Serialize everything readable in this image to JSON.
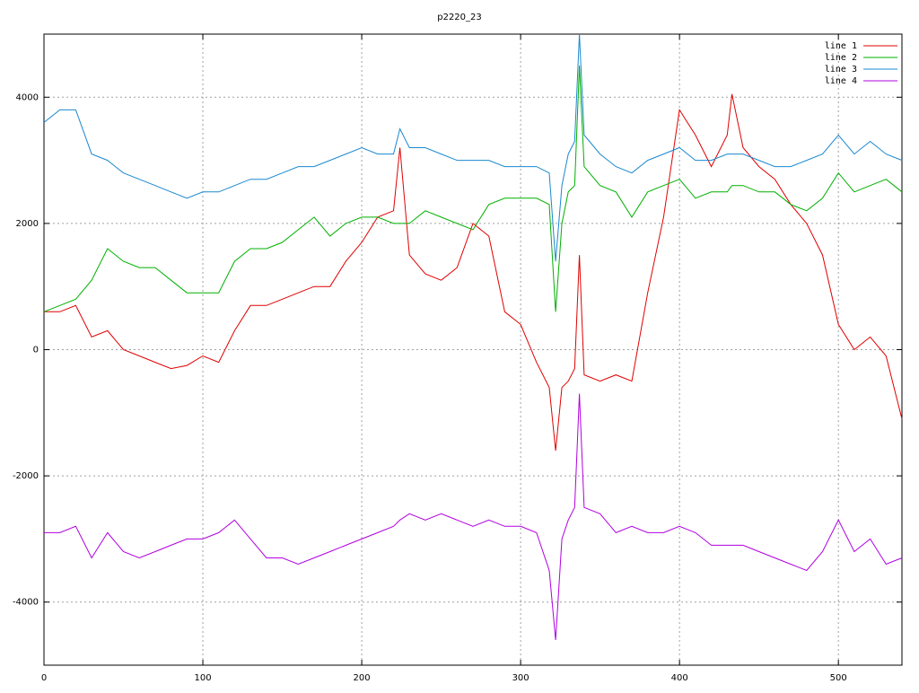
{
  "chart_data": {
    "type": "line",
    "title": "p2220_23",
    "x": [
      0,
      10,
      20,
      30,
      40,
      50,
      60,
      70,
      80,
      90,
      100,
      110,
      120,
      130,
      140,
      150,
      160,
      170,
      180,
      190,
      200,
      210,
      220,
      224,
      230,
      240,
      250,
      260,
      270,
      280,
      290,
      300,
      310,
      318,
      322,
      326,
      330,
      334,
      337,
      340,
      350,
      360,
      370,
      380,
      390,
      400,
      410,
      420,
      430,
      433,
      440,
      450,
      460,
      470,
      480,
      490,
      500,
      510,
      520,
      530,
      540
    ],
    "series": [
      {
        "name": "line 1",
        "color": "#e00000",
        "values": [
          600,
          600,
          700,
          200,
          300,
          0,
          -100,
          -200,
          -300,
          -250,
          -100,
          -200,
          300,
          700,
          700,
          800,
          900,
          1000,
          1000,
          1400,
          1700,
          2100,
          2200,
          3200,
          1500,
          1200,
          1100,
          1300,
          2000,
          1800,
          600,
          400,
          -200,
          -600,
          -1600,
          -600,
          -500,
          -300,
          1500,
          -400,
          -500,
          -400,
          -500,
          900,
          2100,
          3800,
          3400,
          2900,
          3400,
          4050,
          3200,
          2900,
          2700,
          2300,
          2000,
          1500,
          400,
          0,
          200,
          -100,
          -1100
        ]
      },
      {
        "name": "line 2",
        "color": "#00b000",
        "values": [
          600,
          700,
          800,
          1100,
          1600,
          1400,
          1300,
          1300,
          1100,
          900,
          900,
          900,
          1400,
          1600,
          1600,
          1700,
          1900,
          2100,
          1800,
          2000,
          2100,
          2100,
          2000,
          2000,
          2000,
          2200,
          2100,
          2000,
          1900,
          2300,
          2400,
          2400,
          2400,
          2300,
          600,
          2000,
          2500,
          2600,
          4500,
          2900,
          2600,
          2500,
          2100,
          2500,
          2600,
          2700,
          2400,
          2500,
          2500,
          2600,
          2600,
          2500,
          2500,
          2300,
          2200,
          2400,
          2800,
          2500,
          2600,
          2700,
          2500
        ]
      },
      {
        "name": "line 3",
        "color": "#1a88d0",
        "values": [
          3600,
          3800,
          3800,
          3100,
          3000,
          2800,
          2700,
          2600,
          2500,
          2400,
          2500,
          2500,
          2600,
          2700,
          2700,
          2800,
          2900,
          2900,
          3000,
          3100,
          3200,
          3100,
          3100,
          3500,
          3200,
          3200,
          3100,
          3000,
          3000,
          3000,
          2900,
          2900,
          2900,
          2800,
          1400,
          2600,
          3100,
          3300,
          5000,
          3400,
          3100,
          2900,
          2800,
          3000,
          3100,
          3200,
          3000,
          3000,
          3100,
          3100,
          3100,
          3000,
          2900,
          2900,
          3000,
          3100,
          3400,
          3100,
          3300,
          3100,
          3000
        ]
      },
      {
        "name": "line 4",
        "color": "#b000e0",
        "values": [
          -2900,
          -2900,
          -2800,
          -3300,
          -2900,
          -3200,
          -3300,
          -3200,
          -3100,
          -3000,
          -3000,
          -2900,
          -2700,
          -3000,
          -3300,
          -3300,
          -3400,
          -3300,
          -3200,
          -3100,
          -3000,
          -2900,
          -2800,
          -2700,
          -2600,
          -2700,
          -2600,
          -2700,
          -2800,
          -2700,
          -2800,
          -2800,
          -2900,
          -3500,
          -4600,
          -3000,
          -2700,
          -2500,
          -700,
          -2500,
          -2600,
          -2900,
          -2800,
          -2900,
          -2900,
          -2800,
          -2900,
          -3100,
          -3100,
          -3100,
          -3100,
          -3200,
          -3300,
          -3400,
          -3500,
          -3200,
          -2700,
          -3200,
          -3000,
          -3400,
          -3300
        ]
      }
    ],
    "xlim": [
      0,
      540
    ],
    "ylim": [
      -5000,
      5000
    ],
    "xticks": [
      0,
      100,
      200,
      300,
      400,
      500
    ],
    "yticks": [
      -4000,
      -2000,
      0,
      2000,
      4000
    ],
    "grid": true,
    "legend": "top-right"
  }
}
